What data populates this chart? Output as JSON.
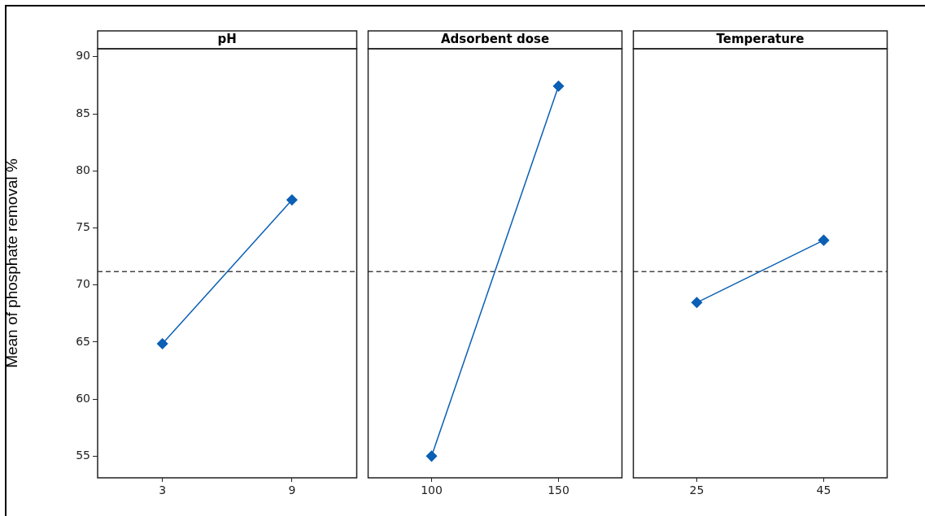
{
  "chart_data": [
    {
      "type": "line",
      "title": "pH",
      "ylabel": "Mean of phosphate removal %",
      "categories": [
        "3",
        "9"
      ],
      "values": [
        64.85,
        77.45
      ],
      "color": "#0b5fb4",
      "marker": "diamond",
      "ylim": [
        53.1,
        90.7
      ],
      "yticks": [
        55,
        60,
        65,
        70,
        75,
        80,
        85,
        90
      ],
      "ref_lines": [
        {
          "axis": "y",
          "value": 71.17,
          "color": "#444444",
          "line_style": "dashed"
        }
      ]
    },
    {
      "type": "line",
      "title": "Adsorbent dose",
      "categories": [
        "100",
        "150"
      ],
      "values": [
        55.0,
        87.42
      ],
      "color": "#0b5fb4",
      "marker": "diamond",
      "ylim": [
        53.1,
        90.7
      ],
      "yticks": [
        55,
        60,
        65,
        70,
        75,
        80,
        85,
        90
      ],
      "tick_labels": "x",
      "ref_lines": [
        {
          "axis": "y",
          "value": 71.17,
          "color": "#444444",
          "line_style": "dashed"
        }
      ]
    },
    {
      "type": "line",
      "title": "Temperature",
      "categories": [
        "25",
        "45"
      ],
      "values": [
        68.46,
        73.92
      ],
      "color": "#0b5fb4",
      "marker": "diamond",
      "ylim": [
        53.1,
        90.7
      ],
      "yticks": [
        55,
        60,
        65,
        70,
        75,
        80,
        85,
        90
      ],
      "tick_labels": "x",
      "ref_lines": [
        {
          "axis": "y",
          "value": 71.17,
          "color": "#444444",
          "line_style": "dashed"
        }
      ]
    }
  ]
}
